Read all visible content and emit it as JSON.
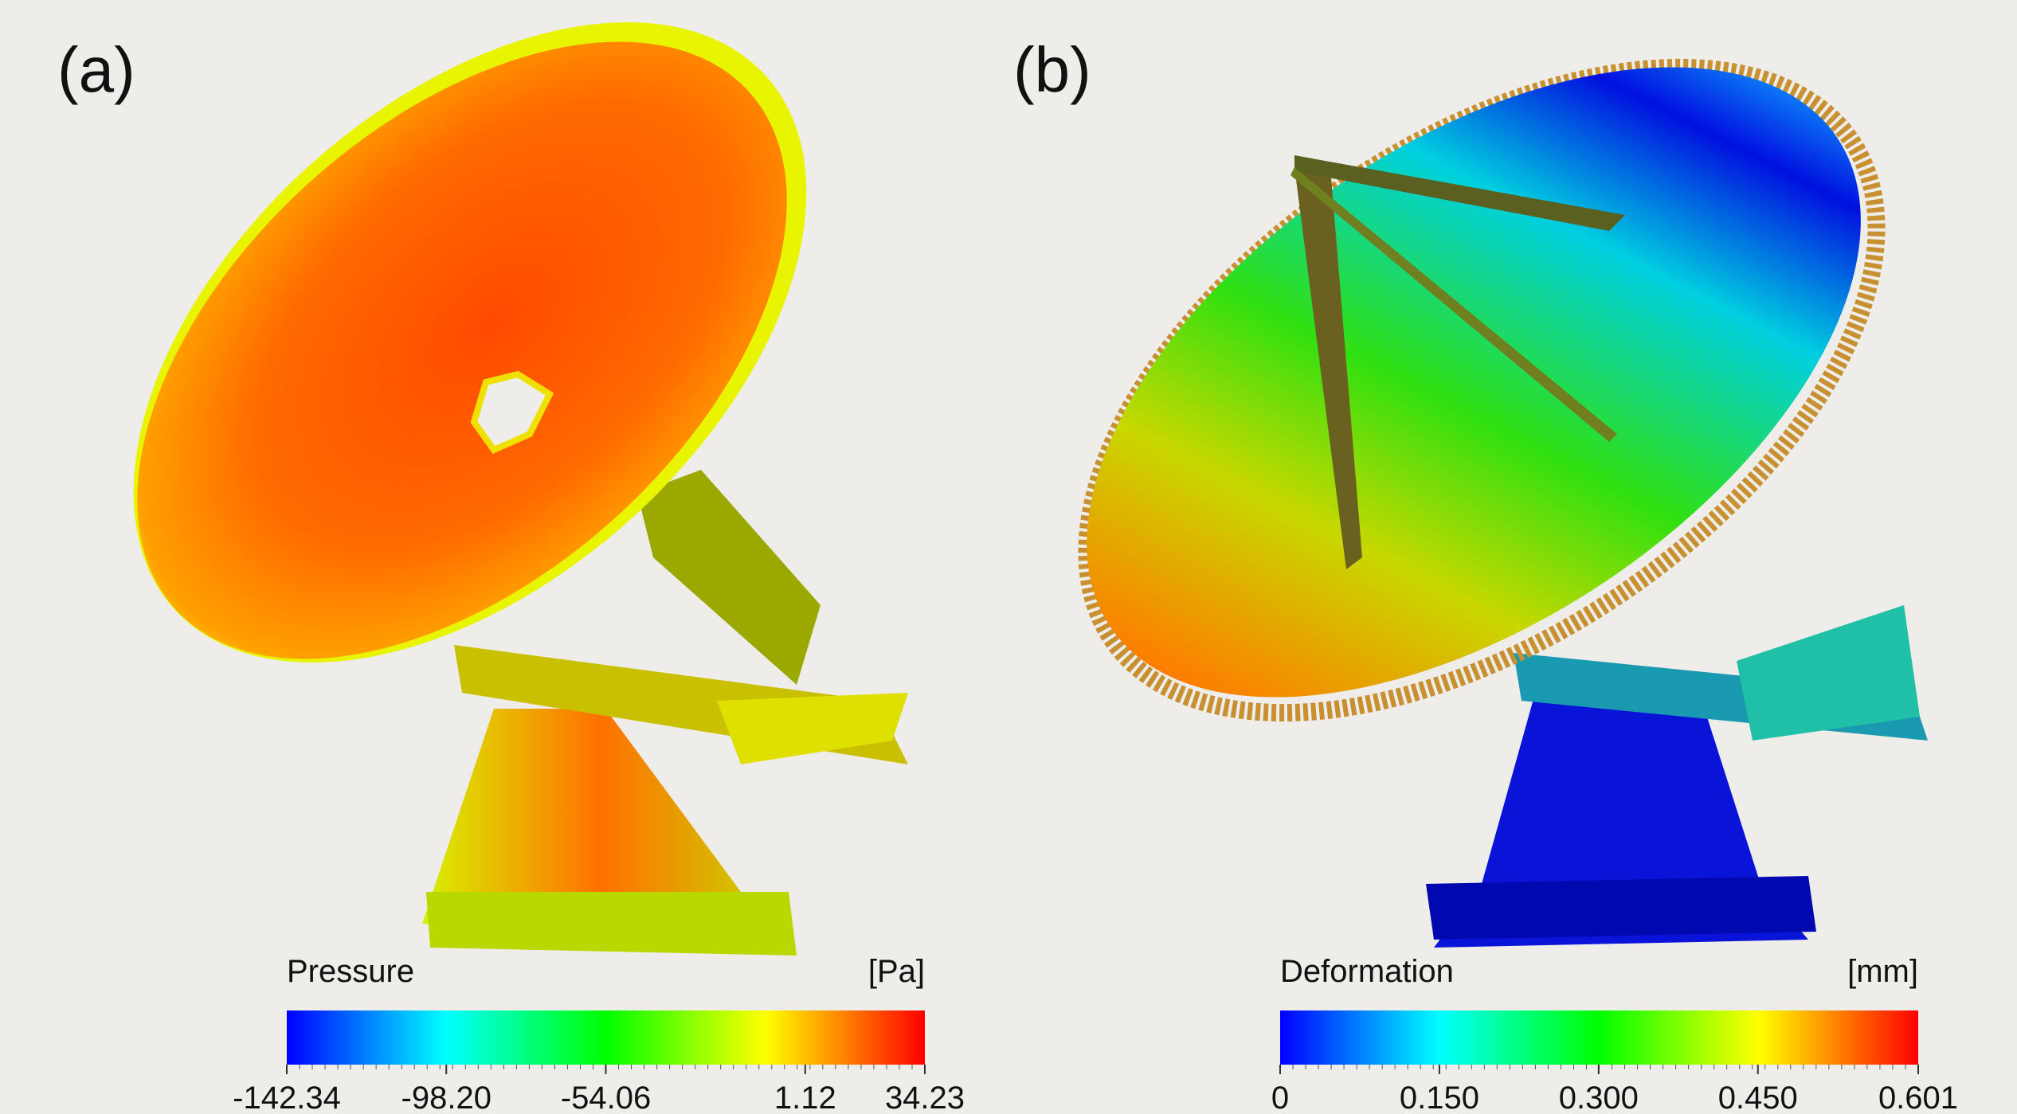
{
  "chart_data": [
    {
      "type": "colorbar",
      "panel_label": "(a)",
      "title": "Pressure",
      "unit": "[Pa]",
      "xlim": [
        -142.34,
        34.23
      ],
      "xticks": [
        -142.34,
        {
          "value": -98.2,
          "label": "-98.20"
        },
        -54.06,
        1.12,
        34.23
      ],
      "colors": [
        "#0000ff",
        "#00ffff",
        "#00ff00",
        "#ffff00",
        "#ff0000"
      ]
    },
    {
      "type": "colorbar",
      "panel_label": "(b)",
      "title": "Deformation",
      "unit": "[mm]",
      "xlim": [
        0,
        0.601
      ],
      "xticks": [
        0,
        {
          "value": 0.15,
          "label": "0.150"
        },
        {
          "value": 0.3,
          "label": "0.300"
        },
        {
          "value": 0.45,
          "label": "0.450"
        },
        0.601
      ],
      "colors": [
        "#0000ff",
        "#00ffff",
        "#00ff00",
        "#ffff00",
        "#ff0000"
      ]
    }
  ]
}
